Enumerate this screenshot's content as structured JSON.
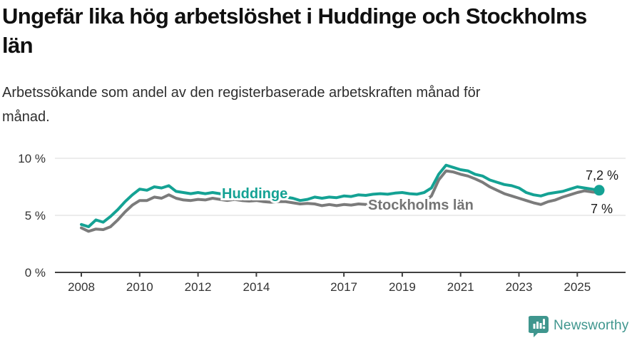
{
  "page": {
    "title_lines": [
      "Ungefär lika hög arbetslöshet i Huddinge och Stockholms",
      "län"
    ],
    "subtitle_lines": [
      "Arbetssökande som andel av den registerbaserade arbetskraften månad för",
      "månad."
    ]
  },
  "footer": {
    "brand": "Newsworthy",
    "brand_color": "#3f968e",
    "logo_icon": "newsworthy-speech-bubble-bar-chart-icon"
  },
  "colors": {
    "huddinge_teal": "#14a294",
    "stockholm_gray": "#7b7b7b",
    "inline_label_gray": "#757575",
    "axis_line": "#404040",
    "gridline": "#d9d9d9",
    "tick_text": "#333333",
    "value_label_text": "#1a1a1a"
  },
  "chart_data": {
    "type": "line",
    "title": "Ungefär lika hög arbetslöshet i Huddinge och Stockholms län",
    "subtitle": "Arbetssökande som andel av den registerbaserade arbetskraften månad för månad.",
    "unit": "%",
    "grid": "horizontal",
    "legend_position": "inline-labels",
    "x_start": 2008.0,
    "x_step_years": 0.25,
    "x_end": 2025.75,
    "ylim": [
      0,
      10
    ],
    "y_ticks": [
      {
        "value": 0,
        "label": "0 %"
      },
      {
        "value": 5,
        "label": "5 %"
      },
      {
        "value": 10,
        "label": "10 %"
      }
    ],
    "x_ticks": [
      {
        "value": 2008,
        "label": "2008"
      },
      {
        "value": 2010,
        "label": "2010"
      },
      {
        "value": 2012,
        "label": "2012"
      },
      {
        "value": 2014,
        "label": "2014"
      },
      {
        "value": 2017,
        "label": "2017"
      },
      {
        "value": 2019,
        "label": "2019"
      },
      {
        "value": 2021,
        "label": "2021"
      },
      {
        "value": 2023,
        "label": "2023"
      },
      {
        "value": 2025,
        "label": "2025"
      }
    ],
    "series": [
      {
        "name": "Stockholms län",
        "inline_label": "Stockholms län",
        "color": "#7b7b7b",
        "label_color": "#757575",
        "end_label": "7 %",
        "end_dot": false,
        "values": [
          3.9,
          3.6,
          3.8,
          3.75,
          4.0,
          4.6,
          5.3,
          5.9,
          6.3,
          6.3,
          6.6,
          6.5,
          6.8,
          6.5,
          6.35,
          6.3,
          6.4,
          6.35,
          6.5,
          6.4,
          6.3,
          6.4,
          6.3,
          6.25,
          6.3,
          6.2,
          6.15,
          6.2,
          6.2,
          6.1,
          6.0,
          6.05,
          6.0,
          5.85,
          5.95,
          5.85,
          5.95,
          5.9,
          6.0,
          5.95,
          6.0,
          5.95,
          6.0,
          6.05,
          6.1,
          6.05,
          6.1,
          6.2,
          6.7,
          8.1,
          8.9,
          8.8,
          8.6,
          8.45,
          8.2,
          7.9,
          7.5,
          7.2,
          6.9,
          6.7,
          6.5,
          6.3,
          6.1,
          5.95,
          6.2,
          6.35,
          6.6,
          6.8,
          7.0,
          7.15,
          7.05,
          7.0
        ]
      },
      {
        "name": "Huddinge",
        "inline_label": "Huddinge",
        "color": "#14a294",
        "label_color": "#14a294",
        "end_label": "7,2 %",
        "end_dot": true,
        "values": [
          4.2,
          4.0,
          4.6,
          4.4,
          4.9,
          5.5,
          6.2,
          6.8,
          7.3,
          7.2,
          7.5,
          7.4,
          7.6,
          7.1,
          7.0,
          6.9,
          7.0,
          6.9,
          7.0,
          6.9,
          6.8,
          6.9,
          6.8,
          6.7,
          6.8,
          6.7,
          6.6,
          6.7,
          6.6,
          6.5,
          6.3,
          6.4,
          6.6,
          6.5,
          6.6,
          6.55,
          6.7,
          6.65,
          6.8,
          6.75,
          6.85,
          6.9,
          6.85,
          6.95,
          7.0,
          6.9,
          6.85,
          7.0,
          7.4,
          8.6,
          9.4,
          9.2,
          9.0,
          8.9,
          8.6,
          8.45,
          8.1,
          7.9,
          7.7,
          7.6,
          7.4,
          7.0,
          6.8,
          6.7,
          6.9,
          7.0,
          7.1,
          7.3,
          7.5,
          7.4,
          7.3,
          7.2
        ]
      }
    ]
  }
}
